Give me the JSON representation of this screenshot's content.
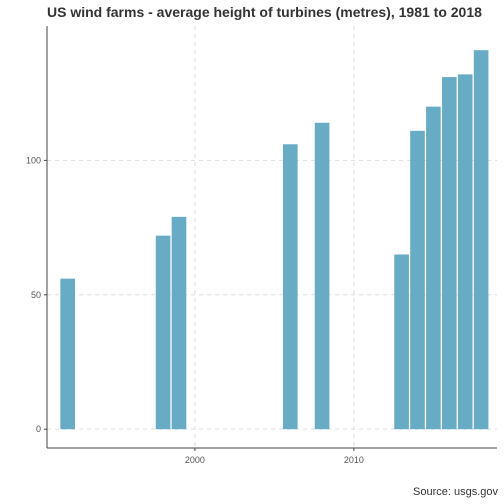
{
  "chart_data": {
    "type": "bar",
    "title": "US wind farms - average height of turbines (metres), 1981 to 2018",
    "source": "Source: usgs.gov",
    "xlabel": "",
    "ylabel": "",
    "x_ticks": [
      2000,
      2010
    ],
    "y_ticks": [
      0,
      50,
      100
    ],
    "xlim": [
      1990.7,
      2019.0
    ],
    "ylim": [
      -7,
      150
    ],
    "grid": true,
    "bar_color": "#67abc4",
    "categories": [
      1992,
      1998,
      1999,
      2006,
      2008,
      2013,
      2014,
      2015,
      2016,
      2017,
      2018
    ],
    "values": [
      56,
      72,
      79,
      106,
      114,
      65,
      111,
      120,
      131,
      132,
      141
    ]
  }
}
